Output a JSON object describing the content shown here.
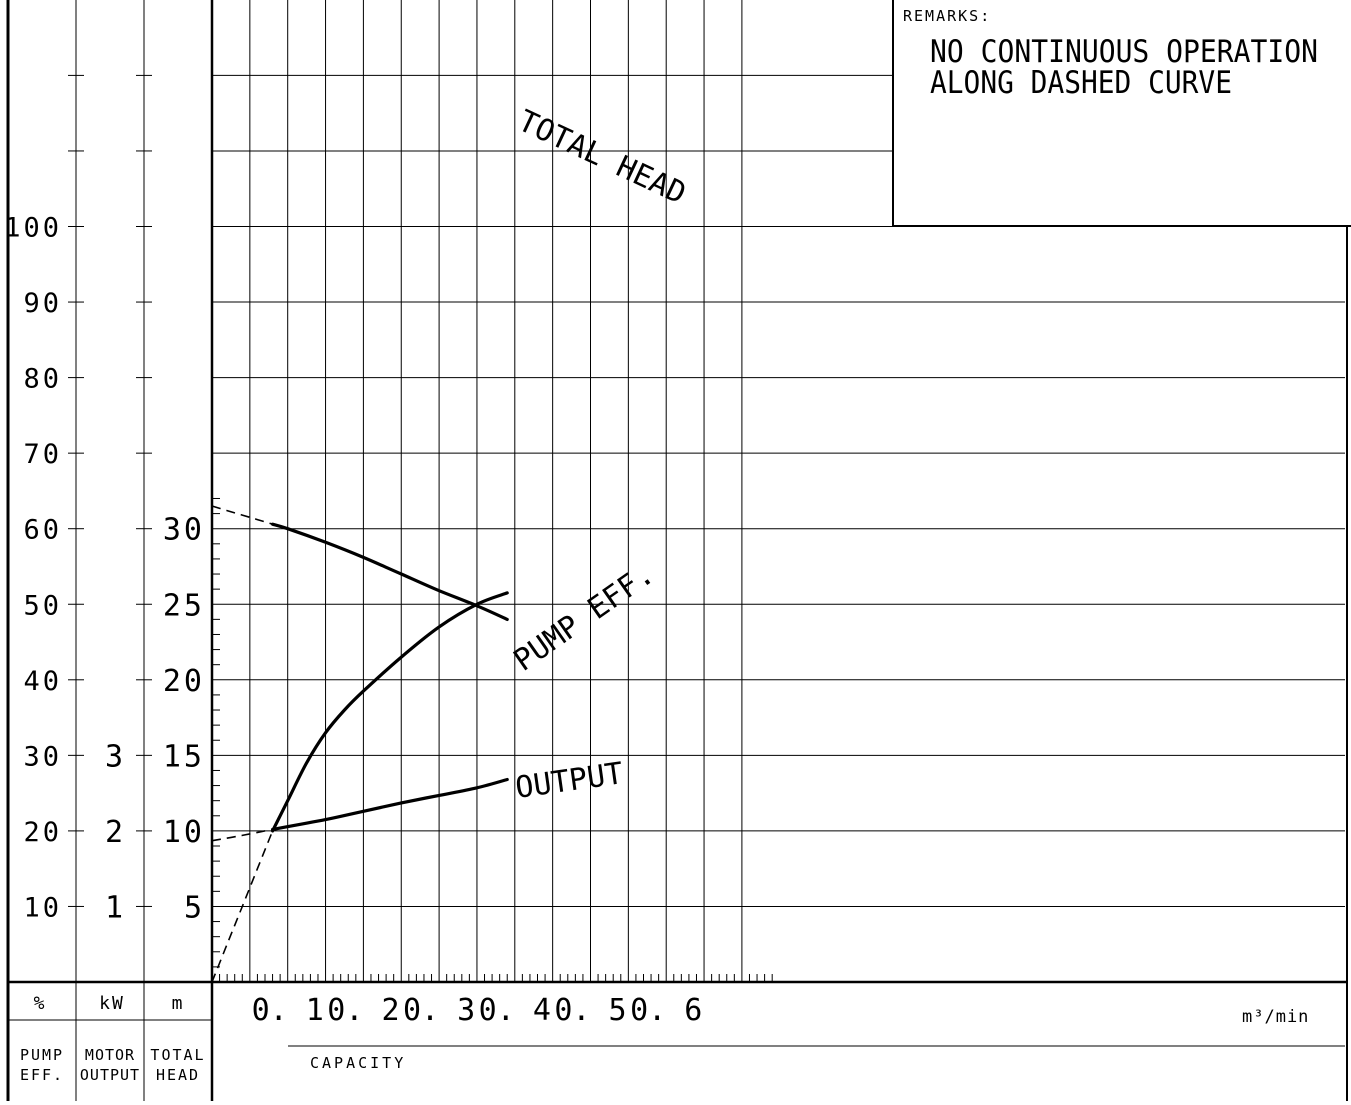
{
  "remarks": {
    "heading": "REMARKS:",
    "line1": "NO CONTINUOUS OPERATION",
    "line2": "ALONG DASHED CURVE"
  },
  "axis_footer": {
    "units": {
      "pct": "%",
      "kw": "kW",
      "m": "m"
    },
    "names": {
      "eff_line1": "PUMP",
      "eff_line2": "EFF.",
      "motor_line1": "MOTOR",
      "motor_line2": "OUTPUT",
      "head_line1": "TOTAL",
      "head_line2": "HEAD"
    },
    "x_unit": "m³/min",
    "x_label": "CAPACITY"
  },
  "chart_data": {
    "type": "line",
    "x_label": "CAPACITY",
    "x_unit": "m³/min",
    "xlim": [
      0,
      0.75
    ],
    "x_ticks": [
      "0. 1",
      "0. 2",
      "0. 3",
      "0. 4",
      "0. 5",
      "0. 6"
    ],
    "x_tick_values": [
      0.1,
      0.2,
      0.3,
      0.4,
      0.5,
      0.6
    ],
    "axes": {
      "total_head": {
        "unit": "m",
        "name": "TOTAL HEAD",
        "ylim": [
          0,
          32.5
        ],
        "ticks": [
          5,
          10,
          15,
          20,
          25,
          30
        ]
      },
      "motor_output": {
        "unit": "kW",
        "name": "MOTOR OUTPUT",
        "ylim": [
          0,
          6.5
        ],
        "ticks": [
          1,
          2,
          3
        ]
      },
      "pump_eff": {
        "unit": "%",
        "name": "PUMP EFF.",
        "ylim": [
          0,
          130
        ],
        "ticks": [
          10,
          20,
          30,
          40,
          50,
          60,
          70,
          80,
          90,
          100
        ]
      }
    },
    "remarks": "NO CONTINUOUS OPERATION ALONG DASHED CURVE",
    "series": [
      {
        "name": "TOTAL HEAD",
        "axis": "total_head",
        "dashed_x": [
          0,
          0.02,
          0.04,
          0.06,
          0.08
        ],
        "dashed_y": [
          31.5,
          31.2,
          30.9,
          30.6,
          30.3
        ],
        "x": [
          0.08,
          0.1,
          0.15,
          0.2,
          0.25,
          0.3,
          0.35,
          0.39
        ],
        "y": [
          30.3,
          30.0,
          29.1,
          28.1,
          27.0,
          25.9,
          24.9,
          24.0
        ]
      },
      {
        "name": "PUMP EFF.",
        "axis": "pump_eff",
        "dashed_x": [
          0,
          0.02,
          0.04,
          0.06,
          0.08
        ],
        "dashed_y": [
          0,
          5,
          10,
          15,
          20
        ],
        "x": [
          0.08,
          0.1,
          0.125,
          0.15,
          0.175,
          0.2,
          0.25,
          0.3,
          0.35,
          0.39
        ],
        "y": [
          20,
          24,
          29,
          33,
          36,
          38.5,
          43,
          47,
          50,
          51.5
        ]
      },
      {
        "name": "OUTPUT",
        "axis": "motor_output",
        "dashed_x": [
          0,
          0.04,
          0.08
        ],
        "dashed_y": [
          1.87,
          1.94,
          2.02
        ],
        "x": [
          0.08,
          0.15,
          0.2,
          0.25,
          0.3,
          0.35,
          0.39
        ],
        "y": [
          2.02,
          2.15,
          2.26,
          2.37,
          2.47,
          2.57,
          2.68
        ]
      }
    ]
  }
}
